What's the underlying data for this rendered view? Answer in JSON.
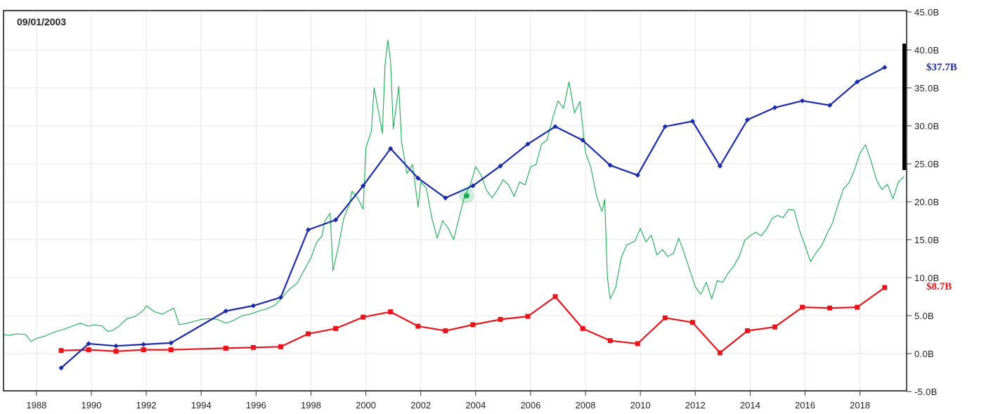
{
  "hover": {
    "date_label": "09/01/2003"
  },
  "end_labels": {
    "blue": {
      "text": "$37.7B",
      "color": "#1a2aa8"
    },
    "red": {
      "text": "$8.7B",
      "color": "#e8141c"
    }
  },
  "colors": {
    "blue": "#1a2aa8",
    "red": "#e8141c",
    "green": "#1aad55",
    "hover_dot": "#1aad55"
  },
  "chart_data": {
    "type": "line",
    "title": "",
    "xlabel": "",
    "ylabel": "",
    "x_ticks": [
      "1988",
      "1990",
      "1992",
      "1994",
      "1996",
      "1998",
      "2000",
      "2002",
      "2004",
      "2006",
      "2008",
      "2010",
      "2012",
      "2014",
      "2016",
      "2018"
    ],
    "x_range": [
      1986.8,
      2019.7
    ],
    "y_ticks": [
      "45.0B",
      "40.0B",
      "35.0B",
      "30.0B",
      "25.0B",
      "20.0B",
      "15.0B",
      "10.0B",
      "5.0B",
      "0.0B",
      "-5.0B"
    ],
    "y_tick_values": [
      45,
      40,
      35,
      30,
      25,
      20,
      15,
      10,
      5,
      0,
      -5
    ],
    "ylim": [
      -5,
      45
    ],
    "grid": true,
    "hover_point": {
      "x": 2003.67,
      "y": 20.8
    },
    "series": [
      {
        "key": "blue",
        "marker": "diamond",
        "points": [
          [
            1988.9,
            -1.9
          ],
          [
            1989.9,
            1.3
          ],
          [
            1990.9,
            1.0
          ],
          [
            1991.9,
            1.2
          ],
          [
            1992.9,
            1.4
          ],
          [
            1994.9,
            5.6
          ],
          [
            1995.9,
            6.3
          ],
          [
            1996.9,
            7.4
          ],
          [
            1997.9,
            16.3
          ],
          [
            1998.9,
            17.6
          ],
          [
            1999.9,
            22.1
          ],
          [
            2000.9,
            27.0
          ],
          [
            2001.9,
            23.1
          ],
          [
            2002.9,
            20.5
          ],
          [
            2003.9,
            22.1
          ],
          [
            2004.9,
            24.7
          ],
          [
            2005.9,
            27.6
          ],
          [
            2006.9,
            29.9
          ],
          [
            2007.9,
            28.1
          ],
          [
            2008.9,
            24.8
          ],
          [
            2009.9,
            23.5
          ],
          [
            2010.9,
            29.9
          ],
          [
            2011.9,
            30.6
          ],
          [
            2012.9,
            24.7
          ],
          [
            2013.9,
            30.8
          ],
          [
            2014.9,
            32.4
          ],
          [
            2015.9,
            33.3
          ],
          [
            2016.9,
            32.7
          ],
          [
            2017.9,
            35.8
          ],
          [
            2018.9,
            37.7
          ]
        ]
      },
      {
        "key": "red",
        "marker": "square",
        "points": [
          [
            1988.9,
            0.4
          ],
          [
            1989.9,
            0.5
          ],
          [
            1990.9,
            0.3
          ],
          [
            1991.9,
            0.5
          ],
          [
            1992.9,
            0.5
          ],
          [
            1994.9,
            0.7
          ],
          [
            1995.9,
            0.8
          ],
          [
            1996.9,
            0.9
          ],
          [
            1997.9,
            2.6
          ],
          [
            1998.9,
            3.3
          ],
          [
            1999.9,
            4.8
          ],
          [
            2000.9,
            5.5
          ],
          [
            2001.9,
            3.6
          ],
          [
            2002.9,
            3.0
          ],
          [
            2003.9,
            3.8
          ],
          [
            2004.9,
            4.5
          ],
          [
            2005.9,
            4.9
          ],
          [
            2006.9,
            7.5
          ],
          [
            2007.9,
            3.3
          ],
          [
            2008.9,
            1.7
          ],
          [
            2009.9,
            1.3
          ],
          [
            2010.9,
            4.7
          ],
          [
            2011.9,
            4.1
          ],
          [
            2012.9,
            0.1
          ],
          [
            2013.9,
            3.0
          ],
          [
            2014.9,
            3.5
          ],
          [
            2015.9,
            6.1
          ],
          [
            2016.9,
            6.0
          ],
          [
            2017.9,
            6.1
          ],
          [
            2018.9,
            8.7
          ]
        ]
      },
      {
        "key": "green",
        "marker": "none",
        "points": [
          [
            1986.8,
            2.5
          ],
          [
            1987.0,
            2.4
          ],
          [
            1987.3,
            2.6
          ],
          [
            1987.6,
            2.5
          ],
          [
            1987.8,
            1.6
          ],
          [
            1988.0,
            2.0
          ],
          [
            1988.3,
            2.3
          ],
          [
            1988.5,
            2.6
          ],
          [
            1988.8,
            3.0
          ],
          [
            1989.0,
            3.2
          ],
          [
            1989.3,
            3.6
          ],
          [
            1989.6,
            4.0
          ],
          [
            1989.9,
            3.6
          ],
          [
            1990.1,
            3.8
          ],
          [
            1990.4,
            3.6
          ],
          [
            1990.6,
            2.9
          ],
          [
            1990.8,
            3.1
          ],
          [
            1991.0,
            3.6
          ],
          [
            1991.3,
            4.6
          ],
          [
            1991.6,
            4.9
          ],
          [
            1991.9,
            5.7
          ],
          [
            1992.0,
            6.3
          ],
          [
            1992.3,
            5.5
          ],
          [
            1992.6,
            5.2
          ],
          [
            1992.9,
            5.8
          ],
          [
            1993.0,
            6.0
          ],
          [
            1993.2,
            3.8
          ],
          [
            1993.5,
            4.0
          ],
          [
            1993.8,
            4.3
          ],
          [
            1994.0,
            4.5
          ],
          [
            1994.3,
            4.6
          ],
          [
            1994.6,
            4.5
          ],
          [
            1994.9,
            4.0
          ],
          [
            1995.2,
            4.4
          ],
          [
            1995.5,
            5.0
          ],
          [
            1995.8,
            5.2
          ],
          [
            1996.1,
            5.6
          ],
          [
            1996.4,
            5.9
          ],
          [
            1996.7,
            6.4
          ],
          [
            1997.0,
            7.6
          ],
          [
            1997.2,
            8.4
          ],
          [
            1997.5,
            9.3
          ],
          [
            1997.8,
            11.3
          ],
          [
            1998.0,
            12.6
          ],
          [
            1998.2,
            14.6
          ],
          [
            1998.4,
            15.5
          ],
          [
            1998.5,
            17.4
          ],
          [
            1998.7,
            18.5
          ],
          [
            1998.8,
            10.9
          ],
          [
            1999.0,
            14.1
          ],
          [
            1999.2,
            17.9
          ],
          [
            1999.4,
            19.6
          ],
          [
            1999.5,
            21.4
          ],
          [
            1999.7,
            20.5
          ],
          [
            1999.9,
            19.0
          ],
          [
            2000.0,
            27.1
          ],
          [
            2000.2,
            29.3
          ],
          [
            2000.3,
            35.0
          ],
          [
            2000.5,
            31.1
          ],
          [
            2000.6,
            29.0
          ],
          [
            2000.7,
            38.1
          ],
          [
            2000.8,
            41.3
          ],
          [
            2000.9,
            38.5
          ],
          [
            2001.0,
            29.6
          ],
          [
            2001.2,
            35.2
          ],
          [
            2001.3,
            27.9
          ],
          [
            2001.5,
            23.7
          ],
          [
            2001.7,
            24.9
          ],
          [
            2001.9,
            19.3
          ],
          [
            2002.0,
            22.6
          ],
          [
            2002.2,
            21.8
          ],
          [
            2002.4,
            17.9
          ],
          [
            2002.6,
            15.2
          ],
          [
            2002.8,
            17.5
          ],
          [
            2003.0,
            16.5
          ],
          [
            2003.2,
            15.0
          ],
          [
            2003.4,
            18.0
          ],
          [
            2003.6,
            20.8
          ],
          [
            2003.8,
            22.2
          ],
          [
            2004.0,
            24.6
          ],
          [
            2004.2,
            23.5
          ],
          [
            2004.4,
            21.5
          ],
          [
            2004.6,
            20.5
          ],
          [
            2004.8,
            21.6
          ],
          [
            2005.0,
            22.9
          ],
          [
            2005.2,
            22.2
          ],
          [
            2005.4,
            20.7
          ],
          [
            2005.6,
            22.6
          ],
          [
            2005.8,
            22.2
          ],
          [
            2006.0,
            24.6
          ],
          [
            2006.2,
            24.9
          ],
          [
            2006.4,
            27.6
          ],
          [
            2006.6,
            28.1
          ],
          [
            2006.8,
            31.0
          ],
          [
            2007.0,
            33.3
          ],
          [
            2007.2,
            32.3
          ],
          [
            2007.4,
            35.8
          ],
          [
            2007.6,
            31.7
          ],
          [
            2007.8,
            33.2
          ],
          [
            2008.0,
            26.5
          ],
          [
            2008.2,
            24.5
          ],
          [
            2008.4,
            20.8
          ],
          [
            2008.6,
            18.7
          ],
          [
            2008.7,
            20.3
          ],
          [
            2008.8,
            10.0
          ],
          [
            2008.9,
            7.2
          ],
          [
            2009.1,
            8.7
          ],
          [
            2009.3,
            12.6
          ],
          [
            2009.5,
            14.3
          ],
          [
            2009.8,
            14.8
          ],
          [
            2010.0,
            16.5
          ],
          [
            2010.2,
            14.7
          ],
          [
            2010.4,
            15.6
          ],
          [
            2010.6,
            13.0
          ],
          [
            2010.8,
            13.7
          ],
          [
            2011.0,
            12.8
          ],
          [
            2011.2,
            13.2
          ],
          [
            2011.4,
            15.2
          ],
          [
            2011.6,
            13.2
          ],
          [
            2011.8,
            11.0
          ],
          [
            2012.0,
            8.8
          ],
          [
            2012.2,
            7.8
          ],
          [
            2012.4,
            9.4
          ],
          [
            2012.6,
            7.2
          ],
          [
            2012.8,
            9.6
          ],
          [
            2013.0,
            9.4
          ],
          [
            2013.2,
            10.6
          ],
          [
            2013.4,
            11.5
          ],
          [
            2013.6,
            12.8
          ],
          [
            2013.8,
            14.9
          ],
          [
            2014.0,
            15.5
          ],
          [
            2014.2,
            16.0
          ],
          [
            2014.4,
            15.5
          ],
          [
            2014.6,
            16.4
          ],
          [
            2014.8,
            17.8
          ],
          [
            2015.0,
            18.2
          ],
          [
            2015.2,
            17.9
          ],
          [
            2015.4,
            19.0
          ],
          [
            2015.6,
            18.9
          ],
          [
            2015.8,
            16.2
          ],
          [
            2016.0,
            14.2
          ],
          [
            2016.2,
            12.1
          ],
          [
            2016.4,
            13.3
          ],
          [
            2016.6,
            14.2
          ],
          [
            2016.8,
            15.8
          ],
          [
            2017.0,
            17.2
          ],
          [
            2017.2,
            19.6
          ],
          [
            2017.4,
            21.7
          ],
          [
            2017.6,
            22.5
          ],
          [
            2017.8,
            24.2
          ],
          [
            2018.0,
            26.4
          ],
          [
            2018.2,
            27.5
          ],
          [
            2018.4,
            25.4
          ],
          [
            2018.6,
            22.9
          ],
          [
            2018.8,
            21.6
          ],
          [
            2019.0,
            22.3
          ],
          [
            2019.2,
            20.4
          ],
          [
            2019.4,
            22.6
          ],
          [
            2019.6,
            23.3
          ]
        ]
      }
    ]
  }
}
